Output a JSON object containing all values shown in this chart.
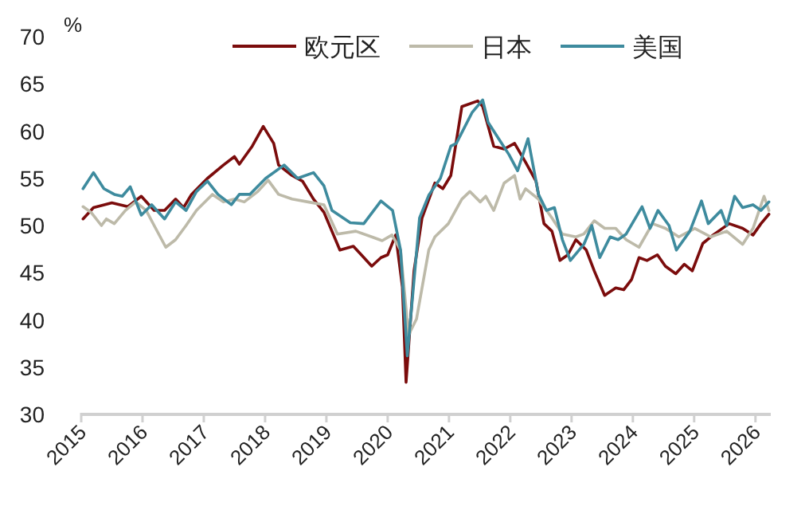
{
  "chart_data": {
    "type": "line",
    "ylabel": "%",
    "legend": "top",
    "grid": false,
    "xlim": [
      2015,
      2026.25
    ],
    "xticks": [
      2015,
      2016,
      2017,
      2018,
      2019,
      2020,
      2021,
      2022,
      2023,
      2024,
      2025,
      2026
    ],
    "ylim": [
      30,
      70
    ],
    "yticks": [
      30,
      35,
      40,
      45,
      50,
      55,
      60,
      65,
      70
    ],
    "series": [
      {
        "name": "欧元区",
        "color": "#7b0c0c",
        "x": [
          2015.03,
          2015.2,
          2015.5,
          2015.76,
          2015.98,
          2016.19,
          2016.36,
          2016.54,
          2016.67,
          2016.8,
          2017.06,
          2017.32,
          2017.5,
          2017.58,
          2017.79,
          2017.97,
          2018.14,
          2018.22,
          2018.44,
          2018.61,
          2018.79,
          2018.96,
          2019.22,
          2019.44,
          2019.57,
          2019.74,
          2019.89,
          2020.0,
          2020.13,
          2020.24,
          2020.3,
          2020.43,
          2020.56,
          2020.69,
          2020.77,
          2020.9,
          2021.03,
          2021.21,
          2021.47,
          2021.55,
          2021.73,
          2021.9,
          2022.07,
          2022.25,
          2022.42,
          2022.55,
          2022.68,
          2022.81,
          2022.94,
          2023.07,
          2023.24,
          2023.37,
          2023.54,
          2023.72,
          2023.85,
          2023.98,
          2024.1,
          2024.23,
          2024.4,
          2024.53,
          2024.7,
          2024.84,
          2024.97,
          2025.14,
          2025.31,
          2025.57,
          2025.79,
          2025.96,
          2026.09,
          2026.22
        ],
        "values": [
          50.7,
          51.9,
          52.4,
          52.0,
          53.1,
          51.6,
          51.6,
          52.8,
          51.9,
          53.3,
          55.0,
          56.4,
          57.3,
          56.5,
          58.4,
          60.5,
          58.7,
          56.4,
          55.3,
          54.7,
          52.8,
          51.4,
          47.4,
          47.8,
          46.9,
          45.7,
          46.6,
          46.9,
          49.0,
          43.5,
          33.4,
          45.2,
          50.8,
          53.1,
          54.5,
          53.9,
          55.3,
          62.6,
          63.2,
          62.6,
          58.4,
          58.1,
          58.7,
          56.7,
          54.7,
          50.2,
          49.4,
          46.3,
          46.9,
          48.5,
          47.4,
          45.2,
          42.6,
          43.4,
          43.2,
          44.3,
          46.6,
          46.3,
          46.9,
          45.7,
          44.9,
          45.9,
          45.2,
          48.1,
          49.0,
          50.2,
          49.7,
          49.0,
          50.2,
          51.2
        ]
      },
      {
        "name": "日本",
        "color": "#bdbaa9",
        "x": [
          2015.03,
          2015.16,
          2015.33,
          2015.41,
          2015.54,
          2015.72,
          2015.89,
          2016.06,
          2016.19,
          2016.38,
          2016.54,
          2016.71,
          2016.88,
          2017.14,
          2017.32,
          2017.5,
          2017.66,
          2017.88,
          2018.05,
          2018.22,
          2018.44,
          2018.7,
          2018.96,
          2019.18,
          2019.48,
          2019.74,
          2019.91,
          2020.07,
          2020.21,
          2020.34,
          2020.47,
          2020.67,
          2020.77,
          2020.99,
          2021.21,
          2021.34,
          2021.51,
          2021.6,
          2021.73,
          2021.9,
          2022.07,
          2022.16,
          2022.25,
          2022.46,
          2022.68,
          2022.85,
          2023.07,
          2023.2,
          2023.37,
          2023.54,
          2023.72,
          2023.89,
          2024.1,
          2024.32,
          2024.53,
          2024.75,
          2025.01,
          2025.27,
          2025.53,
          2025.79,
          2025.96,
          2026.14,
          2026.22
        ],
        "values": [
          52.0,
          51.4,
          50.0,
          50.7,
          50.2,
          51.6,
          52.5,
          51.6,
          50.0,
          47.7,
          48.5,
          50.0,
          51.6,
          53.3,
          52.5,
          52.8,
          52.5,
          53.6,
          54.8,
          53.3,
          52.8,
          52.5,
          52.2,
          49.1,
          49.4,
          48.8,
          48.4,
          49.0,
          47.4,
          38.4,
          40.1,
          47.4,
          48.8,
          50.2,
          52.8,
          53.6,
          52.5,
          53.1,
          51.6,
          54.5,
          55.3,
          52.8,
          53.9,
          52.8,
          50.8,
          49.1,
          48.8,
          49.1,
          50.5,
          49.7,
          49.7,
          48.5,
          47.7,
          50.2,
          49.7,
          48.8,
          49.7,
          48.8,
          49.4,
          48.0,
          49.7,
          53.1,
          51.6
        ]
      },
      {
        "name": "美国",
        "color": "#3e8b9e",
        "x": [
          2015.03,
          2015.2,
          2015.37,
          2015.54,
          2015.67,
          2015.8,
          2015.98,
          2016.15,
          2016.36,
          2016.54,
          2016.71,
          2016.88,
          2017.06,
          2017.23,
          2017.45,
          2017.58,
          2017.75,
          2018.01,
          2018.31,
          2018.53,
          2018.79,
          2018.96,
          2019.09,
          2019.39,
          2019.61,
          2019.89,
          2020.08,
          2020.21,
          2020.32,
          2020.52,
          2020.67,
          2020.86,
          2021.03,
          2021.12,
          2021.38,
          2021.55,
          2021.64,
          2021.81,
          2021.98,
          2022.12,
          2022.29,
          2022.46,
          2022.59,
          2022.72,
          2022.85,
          2022.98,
          2023.2,
          2023.33,
          2023.46,
          2023.63,
          2023.76,
          2023.89,
          2024.15,
          2024.28,
          2024.41,
          2024.59,
          2024.71,
          2024.93,
          2025.12,
          2025.23,
          2025.44,
          2025.53,
          2025.66,
          2025.79,
          2025.96,
          2026.09,
          2026.22
        ],
        "values": [
          53.9,
          55.6,
          53.9,
          53.3,
          53.1,
          54.1,
          51.1,
          52.2,
          50.7,
          52.5,
          51.6,
          53.6,
          54.7,
          53.3,
          52.2,
          53.3,
          53.3,
          55.0,
          56.4,
          55.0,
          55.6,
          54.2,
          51.6,
          50.3,
          50.2,
          52.6,
          51.6,
          47.4,
          36.2,
          50.8,
          53.2,
          55.0,
          58.4,
          58.7,
          62.0,
          63.3,
          60.9,
          59.2,
          57.5,
          55.8,
          59.2,
          53.3,
          51.6,
          51.9,
          48.5,
          46.3,
          48.0,
          50.0,
          46.6,
          48.8,
          48.5,
          49.1,
          52.0,
          49.7,
          51.6,
          50.0,
          47.4,
          49.4,
          52.6,
          50.2,
          51.6,
          50.0,
          53.1,
          51.9,
          52.2,
          51.6,
          52.5
        ]
      }
    ]
  }
}
